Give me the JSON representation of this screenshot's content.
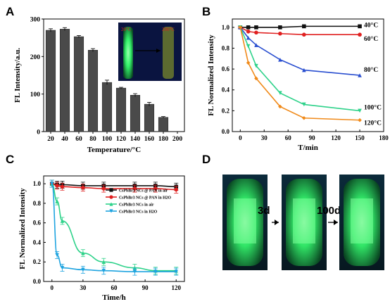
{
  "panel_labels": {
    "a": "A",
    "b": "B",
    "c": "C",
    "d": "D"
  },
  "chart_data": [
    {
      "type": "bar",
      "panel": "A",
      "xlabel": "Temperature/°C",
      "ylabel": "FL Intensity/a.u.",
      "categories": [
        "20",
        "40",
        "60",
        "80",
        "100",
        "120",
        "140",
        "160",
        "180"
      ],
      "values": [
        270,
        273,
        253,
        217,
        131,
        116,
        97,
        73,
        38
      ],
      "errors": [
        4,
        4,
        3,
        4,
        6,
        2,
        4,
        5,
        2
      ],
      "xticks": [
        "20",
        "40",
        "60",
        "80",
        "100",
        "120",
        "140",
        "160",
        "180",
        "200"
      ],
      "yticks": [
        0,
        100,
        200,
        300
      ],
      "ylim": [
        0,
        300
      ],
      "bar_color": "#4a4a4a",
      "inset": {
        "left_label": "20°C",
        "right_label": "200°C",
        "label_color": "#d02020"
      }
    },
    {
      "type": "line",
      "panel": "B",
      "xlabel": "T/min",
      "ylabel": "FL Normalized Intensity",
      "x": [
        0,
        10,
        20,
        50,
        80,
        150
      ],
      "xticks": [
        0,
        30,
        60,
        90,
        120,
        150,
        180
      ],
      "yticks": [
        0.0,
        0.2,
        0.4,
        0.6,
        0.8,
        1.0
      ],
      "xlim": [
        -10,
        180
      ],
      "ylim": [
        0,
        1.08
      ],
      "series": [
        {
          "name": "40°C",
          "color": "#111111",
          "marker": "square",
          "values": [
            1.0,
            1.0,
            1.0,
            1.0,
            1.01,
            1.01
          ]
        },
        {
          "name": "60°C",
          "color": "#e02020",
          "marker": "circle",
          "values": [
            1.0,
            0.96,
            0.95,
            0.94,
            0.93,
            0.93
          ]
        },
        {
          "name": "80°C",
          "color": "#2a4fd0",
          "marker": "triangle",
          "values": [
            1.0,
            0.9,
            0.83,
            0.69,
            0.59,
            0.54
          ]
        },
        {
          "name": "100°C",
          "color": "#2ed28a",
          "marker": "triangle-down",
          "values": [
            1.0,
            0.82,
            0.63,
            0.37,
            0.26,
            0.2
          ]
        },
        {
          "name": "120°C",
          "color": "#f08a1a",
          "marker": "diamond",
          "values": [
            1.0,
            0.66,
            0.51,
            0.24,
            0.13,
            0.11
          ]
        }
      ]
    },
    {
      "type": "line",
      "panel": "C",
      "xlabel": "Time/h",
      "ylabel": "FL Normalized Intensity",
      "x": [
        0,
        5,
        10,
        30,
        50,
        80,
        100,
        120
      ],
      "xticks": [
        0,
        30,
        60,
        90,
        120
      ],
      "yticks": [
        0.0,
        0.2,
        0.4,
        0.6,
        0.8,
        1.0
      ],
      "xlim": [
        -8,
        128
      ],
      "ylim": [
        0,
        1.08
      ],
      "legend_position": "upper right",
      "series": [
        {
          "name": "CsPbBr₃ NCs @ PAN in air",
          "color": "#111111",
          "marker": "square",
          "values": [
            1.0,
            0.99,
            0.99,
            0.98,
            0.98,
            0.98,
            0.98,
            0.97
          ]
        },
        {
          "name": "CsPbBr₃ NCs @ PAN in H₂O",
          "color": "#e02020",
          "marker": "circle",
          "values": [
            1.0,
            0.98,
            0.97,
            0.96,
            0.95,
            0.95,
            0.95,
            0.94
          ]
        },
        {
          "name": "CsPbBr₃ NCs in air",
          "color": "#2ed28a",
          "marker": "triangle",
          "values": [
            1.0,
            0.82,
            0.62,
            0.29,
            0.2,
            0.14,
            0.11,
            0.11
          ]
        },
        {
          "name": "CsPbBr₃ NCs in H₂O",
          "color": "#1fa4e0",
          "marker": "triangle-down",
          "values": [
            1.0,
            0.27,
            0.14,
            0.12,
            0.11,
            0.1,
            0.1,
            0.1
          ]
        }
      ]
    }
  ],
  "photos": {
    "arrow1_label": "3d",
    "arrow2_label": "100d",
    "glow_color": "#39ff6a"
  }
}
